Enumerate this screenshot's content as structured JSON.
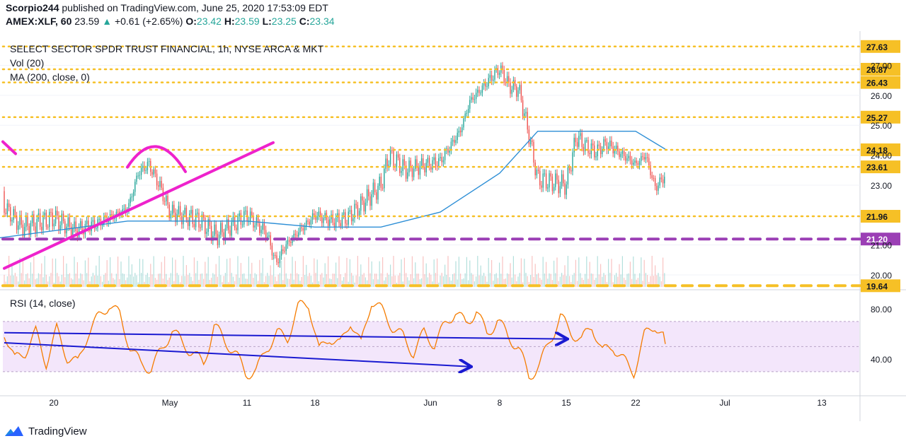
{
  "header": {
    "publisher": "Scorpio244",
    "published_text": "published on TradingView.com, June 25, 2020 17:53:09 EDT",
    "symbol": "AMEX:XLF, 60",
    "price": "23.59",
    "arrow": "▲",
    "change": "+0.61 (+2.65%)",
    "o_label": "O:",
    "o": "23.42",
    "h_label": "H:",
    "h": "23.59",
    "l_label": "L:",
    "l": "23.25",
    "c_label": "C:",
    "c": "23.34"
  },
  "footer": {
    "brand": "TradingView",
    "logo_icon": "tradingview-logo-icon"
  },
  "colors": {
    "candle_up": "#26a69a",
    "candle_down": "#ef5350",
    "ma": "#2e8fd6",
    "levels": "#f6c026",
    "purple_dash": "#9b3fb5",
    "trendline": "#ee22cc",
    "rsi_line": "#f57c00",
    "rsi_band": "#f3e6fb",
    "arrows": "#1a1ad1"
  },
  "chart_data": [
    {
      "type": "candlestick",
      "title": "SELECT SECTOR SPDR TRUST FINANCIAL, 1h, NYSE ARCA & MKT",
      "indicators": [
        "Vol (20)",
        "MA (200, close, 0)"
      ],
      "ylim": [
        19.6,
        28.05
      ],
      "y_ticks": [
        20.0,
        21.0,
        23.0,
        24.0,
        25.0,
        26.0,
        27.0
      ],
      "y_tick_labels": [
        "20.00",
        "21.00",
        "23.00",
        "24.00",
        "25.00",
        "26.00",
        "27.00"
      ],
      "x_ticks": [
        "20",
        "May",
        "11",
        "18",
        "Jun",
        "8",
        "15",
        "22",
        "Jul",
        "13"
      ],
      "horizontal_levels": [
        27.63,
        26.87,
        26.43,
        25.27,
        24.18,
        23.61,
        21.96,
        21.2,
        19.64
      ],
      "level_labels": [
        "27.63",
        "26.87",
        "26.43",
        "25.27",
        "24.18",
        "23.61",
        "21.96",
        "21.20",
        "19.64"
      ],
      "close_path": [
        {
          "d": "Apr 14",
          "c": 22.8
        },
        {
          "d": "Apr 17",
          "c": 21.6
        },
        {
          "d": "Apr 20",
          "c": 21.9
        },
        {
          "d": "Apr 22",
          "c": 21.5
        },
        {
          "d": "Apr 24",
          "c": 21.7
        },
        {
          "d": "Apr 27",
          "c": 22.2
        },
        {
          "d": "Apr 28",
          "c": 23.4
        },
        {
          "d": "Apr 29",
          "c": 23.7
        },
        {
          "d": "Apr 30",
          "c": 23.0
        },
        {
          "d": "May 1",
          "c": 22.1
        },
        {
          "d": "May 5",
          "c": 21.8
        },
        {
          "d": "May 7",
          "c": 21.3
        },
        {
          "d": "May 11",
          "c": 22.0
        },
        {
          "d": "May 13",
          "c": 21.4
        },
        {
          "d": "May 14",
          "c": 20.4
        },
        {
          "d": "May 15",
          "c": 21.0
        },
        {
          "d": "May 18",
          "c": 22.0
        },
        {
          "d": "May 20",
          "c": 21.8
        },
        {
          "d": "May 22",
          "c": 21.9
        },
        {
          "d": "May 26",
          "c": 23.0
        },
        {
          "d": "May 27",
          "c": 24.0
        },
        {
          "d": "May 29",
          "c": 23.5
        },
        {
          "d": "Jun 2",
          "c": 23.8
        },
        {
          "d": "Jun 4",
          "c": 24.8
        },
        {
          "d": "Jun 5",
          "c": 25.8
        },
        {
          "d": "Jun 8",
          "c": 26.9
        },
        {
          "d": "Jun 9",
          "c": 26.3
        },
        {
          "d": "Jun 10",
          "c": 26.2
        },
        {
          "d": "Jun 11",
          "c": 24.8
        },
        {
          "d": "Jun 12",
          "c": 23.2
        },
        {
          "d": "Jun 15",
          "c": 23.0
        },
        {
          "d": "Jun 16",
          "c": 24.6
        },
        {
          "d": "Jun 17",
          "c": 24.3
        },
        {
          "d": "Jun 18",
          "c": 24.1
        },
        {
          "d": "Jun 19",
          "c": 24.4
        },
        {
          "d": "Jun 22",
          "c": 23.7
        },
        {
          "d": "Jun 23",
          "c": 24.0
        },
        {
          "d": "Jun 24",
          "c": 22.9
        },
        {
          "d": "Jun 25",
          "c": 23.34
        }
      ],
      "ma200_path": [
        {
          "d": "Apr 14",
          "v": 21.2
        },
        {
          "d": "Apr 27",
          "v": 21.8
        },
        {
          "d": "May 11",
          "v": 21.8
        },
        {
          "d": "May 18",
          "v": 21.6
        },
        {
          "d": "May 26",
          "v": 21.6
        },
        {
          "d": "Jun 2",
          "v": 22.1
        },
        {
          "d": "Jun 8",
          "v": 23.4
        },
        {
          "d": "Jun 12",
          "v": 24.8
        },
        {
          "d": "Jun 17",
          "v": 24.8
        },
        {
          "d": "Jun 22",
          "v": 24.8
        },
        {
          "d": "Jun 25",
          "v": 24.2
        }
      ]
    },
    {
      "type": "line",
      "title": "RSI (14, close)",
      "ylim": [
        13,
        93
      ],
      "y_tick_labels": [
        "80.00",
        "40.00"
      ],
      "band": [
        30,
        70
      ],
      "series": [
        {
          "name": "RSI (14, close)",
          "values": [
            60,
            36,
            44,
            62,
            40,
            66,
            42,
            34,
            58,
            72,
            85,
            78,
            52,
            36,
            30,
            44,
            62,
            54,
            48,
            38,
            66,
            52,
            42,
            28,
            32,
            52,
            62,
            56,
            78,
            82,
            46,
            60,
            54,
            72,
            50,
            84,
            76,
            66,
            60,
            48,
            62,
            50,
            64,
            76,
            68,
            82,
            62,
            72,
            56,
            46,
            24,
            36,
            58,
            76,
            62,
            52,
            64,
            44,
            52,
            42,
            32,
            58,
            65,
            52
          ]
        }
      ]
    }
  ]
}
